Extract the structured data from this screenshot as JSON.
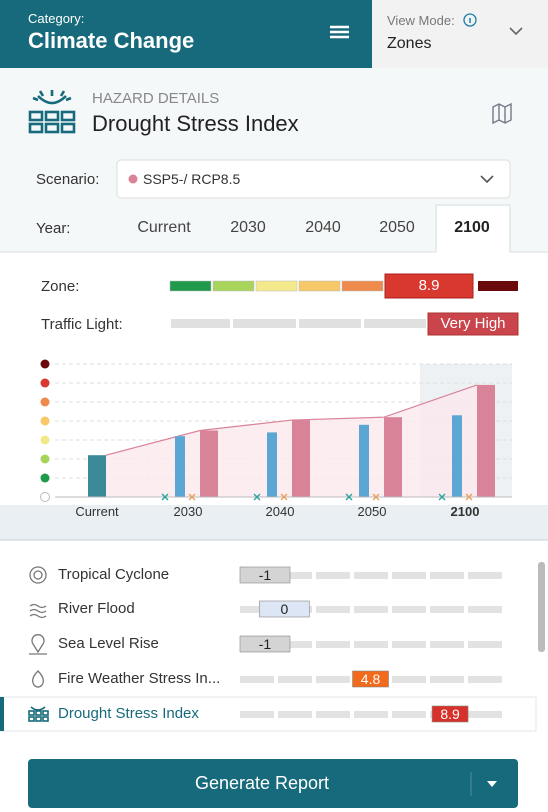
{
  "header": {
    "category_label": "Category:",
    "category": "Climate Change",
    "view_mode_label": "View Mode:",
    "view_mode": "Zones"
  },
  "hazard": {
    "kicker": "HAZARD DETAILS",
    "title": "Drought Stress Index"
  },
  "scenario": {
    "label": "Scenario:",
    "value": "SSP5-/ RCP8.5"
  },
  "year": {
    "label": "Year:",
    "options": [
      "Current",
      "2030",
      "2040",
      "2050",
      "2100"
    ],
    "selected": 4
  },
  "zone": {
    "label": "Zone:",
    "value": "8.9"
  },
  "traffic_light": {
    "label": "Traffic Light:",
    "value": "Very High"
  },
  "chart_data": {
    "type": "bar",
    "categories": [
      "Current",
      "2030",
      "2040",
      "2050",
      "2100"
    ],
    "ylim": [
      0,
      7
    ],
    "yticks": [
      0,
      1,
      2,
      3,
      4,
      5,
      6,
      7
    ],
    "level_colors": [
      "#ffffff",
      "#1e9a4a",
      "#a9d45c",
      "#f3e88a",
      "#f6c867",
      "#ee8a4c",
      "#d9382e",
      "#6b0a0a"
    ],
    "series": [
      {
        "color": "#3a8a99",
        "values": [
          2.2,
          null,
          null,
          null,
          null
        ]
      },
      {
        "color": "#5ba6d2",
        "values": [
          null,
          3.2,
          3.4,
          3.8,
          4.3
        ]
      },
      {
        "color": "#d98399",
        "values": [
          null,
          3.5,
          4.05,
          4.2,
          5.9
        ]
      }
    ]
  },
  "hazard_list": [
    {
      "name": "Tropical Cyclone",
      "value": -1,
      "value_label": "-1",
      "color": "#d4d4d4"
    },
    {
      "name": "River Flood",
      "value": 0,
      "value_label": "0",
      "color": "#dde6f5"
    },
    {
      "name": "Sea Level Rise",
      "value": -1,
      "value_label": "-1",
      "color": "#d4d4d4"
    },
    {
      "name": "Fire Weather Stress In...",
      "value": 4.8,
      "value_label": "4.8",
      "color": "#f26a1b"
    },
    {
      "name": "Drought Stress Index",
      "value": 8.9,
      "value_label": "8.9",
      "color": "#d6322b"
    }
  ],
  "button": {
    "label": "Generate Report"
  }
}
